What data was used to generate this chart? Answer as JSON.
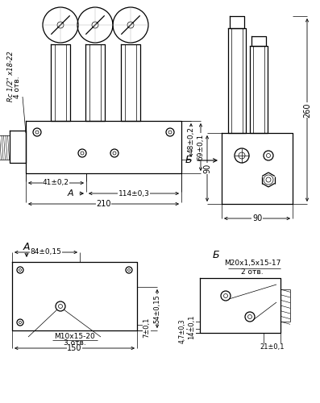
{
  "bg_color": "#ffffff",
  "line_color": "#000000",
  "fig_width": 3.97,
  "fig_height": 5.0,
  "dpi": 100,
  "annotations": {
    "rc_label": "Rc 1/2\" x18-22",
    "rc_otv": "4 отв.",
    "b_section": "Б",
    "dim_41": "41±0,2",
    "dim_114": "114±0,3",
    "dim_210": "210",
    "dim_48": "48±0,2",
    "dim_69": "69±0,1",
    "a_label": "А",
    "dim_260": "260",
    "dim_90_h": "90",
    "dim_90_w": "90",
    "b_label2": "Б",
    "m20_label": "М20х1,5х15-17",
    "m20_otv": "2 отв.",
    "a_label2": "А",
    "dim_84": "84±0,15",
    "dim_7": "7±0,1",
    "dim_54": "54±0,15",
    "dim_47": "4,7±0,3",
    "dim_14": "14±0,1",
    "m10_label": "М10х15-20",
    "m10_otv": "3 отв.",
    "dim_150": "150",
    "dim_21": "21±0,1"
  }
}
